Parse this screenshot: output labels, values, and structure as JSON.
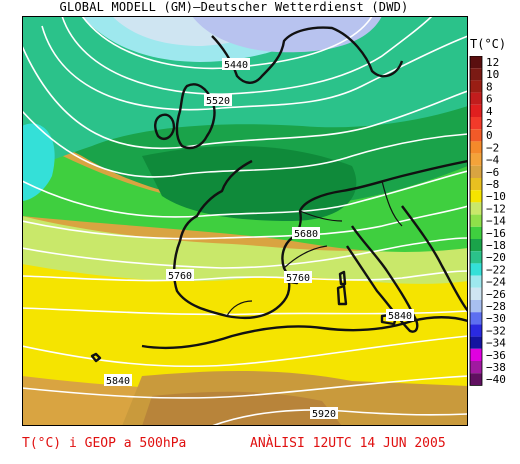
{
  "header": {
    "title": "GLOBAL MODELL (GM)—Deutscher Wetterdienst (DWD)"
  },
  "legend": {
    "title": "T(°C)",
    "entries": [
      {
        "label": "12",
        "color": "#5a0f0f"
      },
      {
        "label": "10",
        "color": "#7a1a14"
      },
      {
        "label": "8",
        "color": "#9a1e14"
      },
      {
        "label": "6",
        "color": "#c11d1d"
      },
      {
        "label": "4",
        "color": "#e01f1f"
      },
      {
        "label": "2",
        "color": "#f23a2a"
      },
      {
        "label": "0",
        "color": "#f25a28"
      },
      {
        "label": "−2",
        "color": "#f58a2a"
      },
      {
        "label": "−4",
        "color": "#f4a33a"
      },
      {
        "label": "−6",
        "color": "#d9a441"
      },
      {
        "label": "−8",
        "color": "#e8c020"
      },
      {
        "label": "−10",
        "color": "#f5e400"
      },
      {
        "label": "−12",
        "color": "#c9e86a"
      },
      {
        "label": "−14",
        "color": "#8fe04a"
      },
      {
        "label": "−16",
        "color": "#3fcf3f"
      },
      {
        "label": "−18",
        "color": "#1aa34a"
      },
      {
        "label": "−20",
        "color": "#2bc28a"
      },
      {
        "label": "−22",
        "color": "#34e0d8"
      },
      {
        "label": "−24",
        "color": "#9ee8ee"
      },
      {
        "label": "−26",
        "color": "#cfe5f2"
      },
      {
        "label": "−28",
        "color": "#a8bff0"
      },
      {
        "label": "−30",
        "color": "#5d6ff0"
      },
      {
        "label": "−32",
        "color": "#2a2ae0"
      },
      {
        "label": "−34",
        "color": "#1414a0"
      },
      {
        "label": "−36",
        "color": "#e000e0"
      },
      {
        "label": "−38",
        "color": "#a01aa0"
      },
      {
        "label": "−40",
        "color": "#601060"
      }
    ]
  },
  "map": {
    "contour_labels": {
      "c5440": "5440",
      "c5520": "5520",
      "c5680": "5680",
      "c5760a": "5760",
      "c5760b": "5760",
      "c5840a": "5840",
      "c5840b": "5840",
      "c5920": "5920"
    }
  },
  "footer": {
    "left": "T(°C) i GEOP a 500hPa",
    "right": "ANÀLISI 12UTC 14 JUN 2005"
  }
}
